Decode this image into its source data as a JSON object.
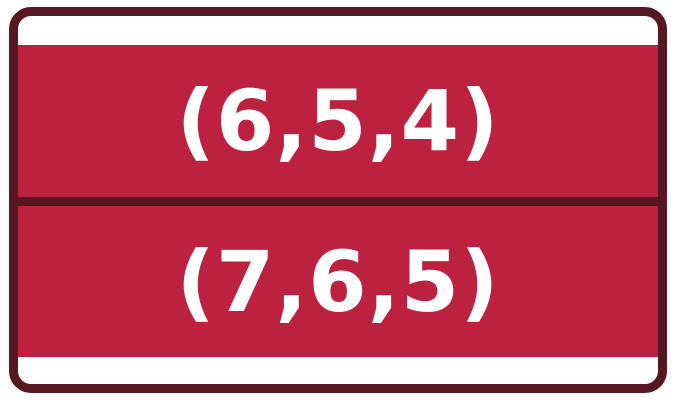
{
  "card": {
    "rows": [
      {
        "label": "(6,5,4)"
      },
      {
        "label": "(7,6,5)"
      }
    ]
  },
  "colors": {
    "border": "#561622",
    "band": "#bd2140",
    "text": "#ffffff",
    "background": "#ffffff"
  }
}
